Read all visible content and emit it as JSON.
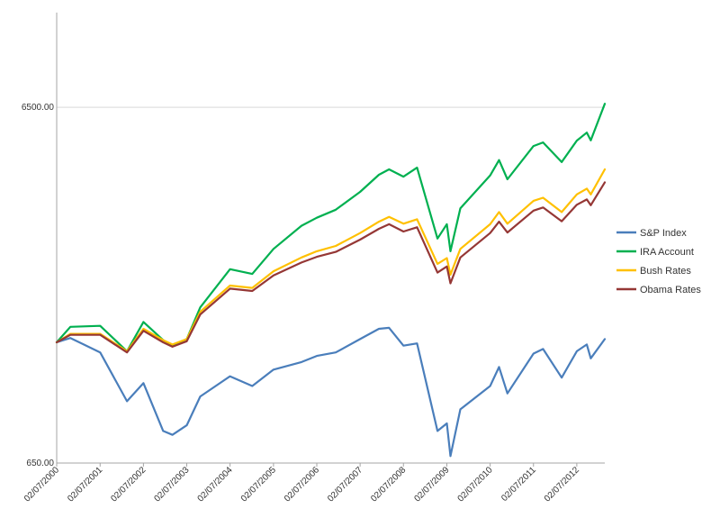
{
  "chart_data": {
    "type": "line",
    "title": "",
    "xlabel": "",
    "ylabel": "",
    "y_scale": "log",
    "ylim": [
      650,
      12000
    ],
    "y_ticks": [
      {
        "value": 6500,
        "label": "6500.00"
      },
      {
        "value": 650,
        "label": "650.00"
      }
    ],
    "x_range": [
      "2000-02-07",
      "2012-09-30"
    ],
    "x_ticks": [
      {
        "date": "2000-02-07",
        "label": "02/07/2000"
      },
      {
        "date": "2001-02-07",
        "label": "02/07/2001"
      },
      {
        "date": "2002-02-07",
        "label": "02/07/2002"
      },
      {
        "date": "2003-02-07",
        "label": "02/07/2003"
      },
      {
        "date": "2004-02-07",
        "label": "02/07/2004"
      },
      {
        "date": "2005-02-07",
        "label": "02/07/2005"
      },
      {
        "date": "2006-02-07",
        "label": "02/07/2006"
      },
      {
        "date": "2007-02-07",
        "label": "02/07/2007"
      },
      {
        "date": "2008-02-07",
        "label": "02/07/2008"
      },
      {
        "date": "2009-02-07",
        "label": "02/07/2009"
      },
      {
        "date": "2010-02-07",
        "label": "02/07/2010"
      },
      {
        "date": "2011-02-07",
        "label": "02/07/2011"
      },
      {
        "date": "2012-02-07",
        "label": "02/07/2012"
      }
    ],
    "grid": "horizontal at major tick",
    "legend_position": "right",
    "x": [
      "2000-02-07",
      "2000-06-01",
      "2001-02-07",
      "2001-09-21",
      "2002-02-07",
      "2002-07-23",
      "2002-10-09",
      "2003-02-07",
      "2003-06-01",
      "2004-02-07",
      "2004-08-12",
      "2005-02-07",
      "2005-10-01",
      "2006-02-07",
      "2006-07-17",
      "2007-02-07",
      "2007-07-15",
      "2007-10-09",
      "2008-02-07",
      "2008-06-01",
      "2008-11-20",
      "2009-02-07",
      "2009-03-09",
      "2009-06-01",
      "2010-02-07",
      "2010-04-23",
      "2010-07-02",
      "2011-02-07",
      "2011-04-29",
      "2011-10-03",
      "2012-02-07",
      "2012-05-01",
      "2012-06-04",
      "2012-09-30"
    ],
    "series": [
      {
        "name": "S&P Index",
        "color": "#4a7ebb",
        "values": [
          1420,
          1460,
          1330,
          970,
          1090,
          800,
          780,
          830,
          1000,
          1140,
          1070,
          1190,
          1250,
          1300,
          1330,
          1450,
          1550,
          1560,
          1390,
          1410,
          800,
          840,
          680,
          920,
          1070,
          1210,
          1020,
          1320,
          1360,
          1130,
          1340,
          1400,
          1280,
          1450
        ]
      },
      {
        "name": "IRA Account",
        "color": "#00b050",
        "values": [
          1420,
          1570,
          1580,
          1340,
          1620,
          1440,
          1390,
          1450,
          1780,
          2280,
          2210,
          2600,
          3020,
          3180,
          3350,
          3760,
          4200,
          4350,
          4150,
          4400,
          2780,
          3050,
          2560,
          3380,
          4180,
          4620,
          4080,
          5060,
          5180,
          4560,
          5240,
          5520,
          5250,
          6650
        ]
      },
      {
        "name": "Bush Rates",
        "color": "#ffc000",
        "values": [
          1420,
          1500,
          1500,
          1340,
          1550,
          1440,
          1400,
          1450,
          1730,
          2050,
          2020,
          2250,
          2460,
          2560,
          2650,
          2880,
          3100,
          3200,
          3060,
          3150,
          2360,
          2450,
          2200,
          2600,
          3050,
          3300,
          3060,
          3550,
          3620,
          3300,
          3700,
          3840,
          3700,
          4350
        ]
      },
      {
        "name": "Obama Rates",
        "color": "#953735",
        "values": [
          1420,
          1490,
          1490,
          1330,
          1530,
          1420,
          1380,
          1430,
          1700,
          2010,
          1980,
          2190,
          2380,
          2470,
          2550,
          2760,
          2960,
          3050,
          2910,
          2990,
          2230,
          2320,
          2080,
          2460,
          2880,
          3100,
          2890,
          3330,
          3400,
          3110,
          3460,
          3580,
          3450,
          4000
        ]
      }
    ]
  }
}
